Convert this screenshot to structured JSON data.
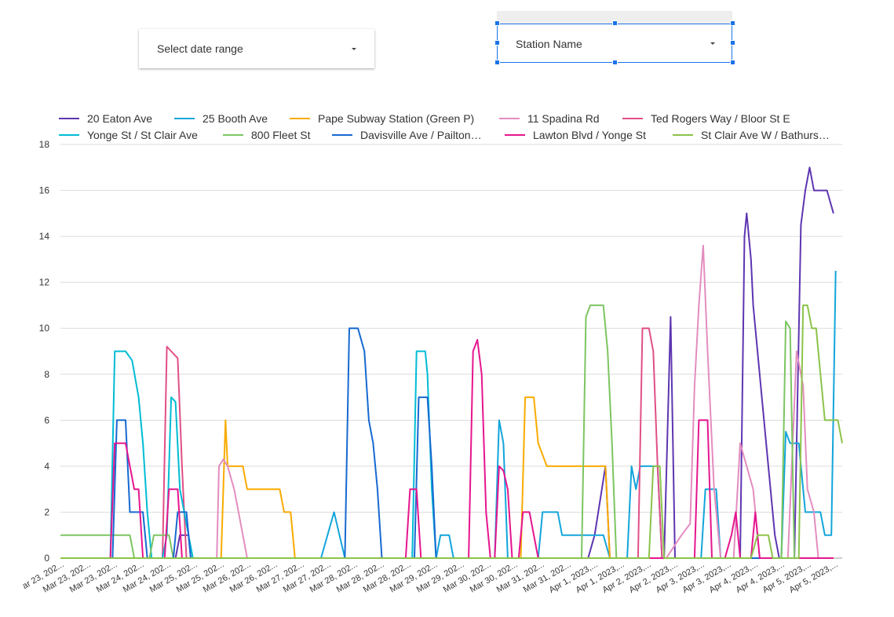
{
  "controls": {
    "date_range_label": "Select date range",
    "station_label": "Station Name"
  },
  "chart_data": {
    "type": "line",
    "ylim": [
      0,
      18
    ],
    "yticks": [
      "0",
      "2",
      "4",
      "6",
      "8",
      "10",
      "12",
      "14",
      "16",
      "18"
    ],
    "grid": true,
    "legend_position": "top",
    "x_tick_labels": [
      "ar 23, 202...",
      "Mar 23, 202...",
      "Mar 23, 202...",
      "Mar 24, 202...",
      "Mar 24, 202...",
      "Mar 25, 202...",
      "Mar 25, 202...",
      "Mar 26, 202...",
      "Mar 26, 202...",
      "Mar 27, 202...",
      "Mar 27, 202...",
      "Mar 28, 202...",
      "Mar 28, 202...",
      "Mar 28, 202...",
      "Mar 29, 202...",
      "Mar 29, 202...",
      "Mar 30, 202...",
      "Mar 30, 202...",
      "Mar 31, 202...",
      "Mar 31, 202...",
      "Apr 1, 2023,...",
      "Apr 1, 2023,...",
      "Apr 2, 2023,...",
      "Apr 2, 2023,...",
      "Apr 3, 2023,...",
      "Apr 3, 2023,...",
      "Apr 4, 2023,...",
      "Apr 4, 2023,...",
      "Apr 5, 2023,...",
      "Apr 5, 2023,..."
    ],
    "x_points": 31,
    "series": [
      {
        "name": "20 Eaton Ave",
        "color": "#5e35b1",
        "points": [
          [
            0,
            0
          ],
          [
            5.3,
            0
          ],
          [
            5.5,
            1
          ],
          [
            5.9,
            1
          ],
          [
            6.0,
            0
          ],
          [
            24.3,
            0
          ],
          [
            24.6,
            1
          ],
          [
            25.1,
            4
          ],
          [
            25.3,
            0
          ],
          [
            27.8,
            0
          ],
          [
            28.1,
            10.5
          ],
          [
            28.3,
            0
          ],
          [
            31.3,
            0
          ],
          [
            31.5,
            14
          ],
          [
            31.6,
            15
          ],
          [
            31.8,
            13
          ],
          [
            31.9,
            11
          ],
          [
            32.3,
            7
          ],
          [
            32.6,
            4
          ],
          [
            32.9,
            1
          ],
          [
            33.1,
            0
          ],
          [
            33.8,
            0
          ],
          [
            34.1,
            14.5
          ],
          [
            34.3,
            16
          ],
          [
            34.5,
            17
          ],
          [
            34.7,
            16
          ],
          [
            35.3,
            16
          ],
          [
            35.6,
            15
          ]
        ]
      },
      {
        "name": "25 Booth Ave",
        "color": "#12a5db",
        "points": [
          [
            0,
            0
          ],
          [
            12.0,
            0
          ],
          [
            12.3,
            1
          ],
          [
            12.6,
            2
          ],
          [
            13.1,
            0
          ],
          [
            17.3,
            0
          ],
          [
            17.5,
            1
          ],
          [
            17.9,
            1
          ],
          [
            18.1,
            0
          ],
          [
            20.0,
            0
          ],
          [
            20.2,
            6
          ],
          [
            20.4,
            5
          ],
          [
            20.6,
            0
          ],
          [
            22.0,
            0
          ],
          [
            22.2,
            2
          ],
          [
            22.9,
            2
          ],
          [
            23.1,
            1
          ],
          [
            25.0,
            1
          ],
          [
            25.3,
            0
          ],
          [
            26.1,
            0
          ],
          [
            26.3,
            4
          ],
          [
            26.5,
            3
          ],
          [
            26.7,
            4
          ],
          [
            27.5,
            4
          ],
          [
            27.7,
            0
          ],
          [
            29.5,
            0
          ],
          [
            29.7,
            3
          ],
          [
            30.2,
            3
          ],
          [
            30.4,
            0
          ],
          [
            33.2,
            0
          ],
          [
            33.4,
            5.5
          ],
          [
            33.6,
            5
          ],
          [
            34.0,
            5
          ],
          [
            34.3,
            2
          ],
          [
            35.0,
            2
          ],
          [
            35.2,
            1
          ],
          [
            35.5,
            1
          ],
          [
            35.7,
            12.5
          ]
        ]
      },
      {
        "name": "Pape Subway Station (Green P)",
        "color": "#f9ab00",
        "points": [
          [
            0,
            0
          ],
          [
            7.4,
            0
          ],
          [
            7.6,
            6
          ],
          [
            7.7,
            4
          ],
          [
            8.4,
            4
          ],
          [
            8.6,
            3
          ],
          [
            10.1,
            3
          ],
          [
            10.3,
            2
          ],
          [
            10.6,
            2
          ],
          [
            10.8,
            0
          ],
          [
            21.2,
            0
          ],
          [
            21.4,
            7
          ],
          [
            21.8,
            7
          ],
          [
            22.0,
            5
          ],
          [
            22.4,
            4
          ],
          [
            25.1,
            4
          ],
          [
            25.3,
            0
          ],
          [
            35.6,
            0
          ]
        ]
      },
      {
        "name": "11 Spadina Rd",
        "color": "#e38dbf",
        "points": [
          [
            0,
            0
          ],
          [
            7.2,
            0
          ],
          [
            7.3,
            4
          ],
          [
            7.5,
            4.3
          ],
          [
            7.7,
            4
          ],
          [
            8.0,
            3
          ],
          [
            8.2,
            2
          ],
          [
            8.4,
            1
          ],
          [
            8.6,
            0
          ],
          [
            27.9,
            0
          ],
          [
            28.6,
            1
          ],
          [
            29.0,
            1.5
          ],
          [
            29.2,
            7.5
          ],
          [
            29.4,
            11
          ],
          [
            29.6,
            13.6
          ],
          [
            29.8,
            9
          ],
          [
            30.1,
            3
          ],
          [
            30.4,
            0
          ],
          [
            31.0,
            0
          ],
          [
            31.3,
            5
          ],
          [
            31.6,
            4
          ],
          [
            31.9,
            3
          ],
          [
            32.2,
            0
          ],
          [
            33.5,
            0
          ],
          [
            33.9,
            9
          ],
          [
            34.2,
            7.5
          ],
          [
            34.4,
            3
          ],
          [
            34.7,
            2
          ],
          [
            34.9,
            0
          ],
          [
            35.6,
            0
          ]
        ]
      },
      {
        "name": "Ted Rogers Way / Bloor St E",
        "color": "#e04f86",
        "points": [
          [
            0,
            0
          ],
          [
            4.7,
            0
          ],
          [
            4.9,
            9.2
          ],
          [
            5.1,
            9
          ],
          [
            5.4,
            8.7
          ],
          [
            5.6,
            4
          ],
          [
            5.8,
            0
          ],
          [
            26.6,
            0
          ],
          [
            26.8,
            10
          ],
          [
            27.1,
            10
          ],
          [
            27.3,
            9
          ],
          [
            27.5,
            4
          ],
          [
            27.7,
            0
          ],
          [
            35.6,
            0
          ]
        ]
      },
      {
        "name": "Yonge St / St Clair Ave",
        "color": "#00bcd4",
        "points": [
          [
            0,
            0
          ],
          [
            2.3,
            0
          ],
          [
            2.5,
            9
          ],
          [
            3.0,
            9
          ],
          [
            3.3,
            8.6
          ],
          [
            3.6,
            7
          ],
          [
            3.8,
            5
          ],
          [
            4.0,
            2
          ],
          [
            4.2,
            0
          ],
          [
            4.7,
            0
          ],
          [
            4.9,
            1
          ],
          [
            5.1,
            7
          ],
          [
            5.3,
            6.8
          ],
          [
            5.5,
            3
          ],
          [
            5.7,
            2
          ],
          [
            5.9,
            1
          ],
          [
            6.1,
            0
          ],
          [
            16.2,
            0
          ],
          [
            16.4,
            9
          ],
          [
            16.8,
            9
          ],
          [
            16.9,
            8
          ],
          [
            17.1,
            3
          ],
          [
            17.3,
            0
          ],
          [
            22.6,
            0
          ],
          [
            35.6,
            0
          ]
        ]
      },
      {
        "name": "800 Fleet St",
        "color": "#7cc561",
        "points": [
          [
            0,
            1
          ],
          [
            3.2,
            1
          ],
          [
            3.4,
            0
          ],
          [
            4.1,
            0
          ],
          [
            4.3,
            1
          ],
          [
            5.0,
            1
          ],
          [
            5.2,
            0
          ],
          [
            24.0,
            0
          ],
          [
            24.2,
            10.5
          ],
          [
            24.4,
            11
          ],
          [
            25.0,
            11
          ],
          [
            25.2,
            9
          ],
          [
            25.4,
            5
          ],
          [
            25.6,
            0
          ],
          [
            33.2,
            0
          ],
          [
            33.4,
            10.3
          ],
          [
            33.6,
            10
          ],
          [
            33.8,
            0
          ],
          [
            35.6,
            0
          ]
        ]
      },
      {
        "name": "Davisville Ave / Pailton…",
        "color": "#1769d1",
        "points": [
          [
            0,
            0
          ],
          [
            2.4,
            0
          ],
          [
            2.6,
            6
          ],
          [
            3.0,
            6
          ],
          [
            3.2,
            2
          ],
          [
            3.8,
            2
          ],
          [
            4.0,
            0
          ],
          [
            5.2,
            0
          ],
          [
            5.4,
            2
          ],
          [
            5.8,
            2
          ],
          [
            6.0,
            0
          ],
          [
            13.1,
            0
          ],
          [
            13.3,
            10
          ],
          [
            13.7,
            10
          ],
          [
            14.0,
            9
          ],
          [
            14.2,
            6
          ],
          [
            14.4,
            5
          ],
          [
            14.6,
            3
          ],
          [
            14.8,
            0
          ],
          [
            16.3,
            0
          ],
          [
            16.5,
            7
          ],
          [
            16.9,
            7
          ],
          [
            17.1,
            4
          ],
          [
            17.3,
            0
          ],
          [
            29.9,
            0
          ],
          [
            35.6,
            0
          ]
        ]
      },
      {
        "name": "Lawton Blvd / Yonge St",
        "color": "#e6158e",
        "points": [
          [
            0,
            0
          ],
          [
            2.3,
            0
          ],
          [
            2.5,
            5
          ],
          [
            3.0,
            5
          ],
          [
            3.2,
            4
          ],
          [
            3.4,
            3
          ],
          [
            3.6,
            3
          ],
          [
            3.8,
            0
          ],
          [
            4.8,
            0
          ],
          [
            5.0,
            3
          ],
          [
            5.4,
            3
          ],
          [
            5.6,
            0
          ],
          [
            15.9,
            0
          ],
          [
            16.1,
            3
          ],
          [
            16.4,
            3
          ],
          [
            16.6,
            0
          ],
          [
            18.8,
            0
          ],
          [
            19.0,
            9
          ],
          [
            19.2,
            9.5
          ],
          [
            19.4,
            8
          ],
          [
            19.6,
            2
          ],
          [
            19.8,
            0
          ],
          [
            20.0,
            0
          ],
          [
            20.2,
            4
          ],
          [
            20.4,
            3.8
          ],
          [
            20.6,
            3
          ],
          [
            20.8,
            0
          ],
          [
            21.1,
            0
          ],
          [
            21.3,
            2
          ],
          [
            21.6,
            2
          ],
          [
            21.8,
            1
          ],
          [
            22.0,
            0
          ],
          [
            29.2,
            0
          ],
          [
            29.4,
            6
          ],
          [
            29.8,
            6
          ],
          [
            30.0,
            0
          ],
          [
            30.6,
            0
          ],
          [
            30.9,
            1
          ],
          [
            31.1,
            2
          ],
          [
            31.3,
            0
          ],
          [
            31.8,
            0
          ],
          [
            32.0,
            2
          ],
          [
            32.2,
            0
          ],
          [
            35.6,
            0
          ]
        ]
      },
      {
        "name": "St Clair Ave W / Bathurs…",
        "color": "#8bc34a",
        "points": [
          [
            0,
            0
          ],
          [
            27.1,
            0
          ],
          [
            27.3,
            4
          ],
          [
            27.6,
            4
          ],
          [
            27.8,
            0
          ],
          [
            31.8,
            0
          ],
          [
            32.1,
            1
          ],
          [
            32.6,
            1
          ],
          [
            32.8,
            0
          ],
          [
            34.0,
            0
          ],
          [
            34.2,
            11
          ],
          [
            34.4,
            11
          ],
          [
            34.6,
            10
          ],
          [
            34.8,
            10
          ],
          [
            35.0,
            8
          ],
          [
            35.2,
            6
          ],
          [
            35.8,
            6
          ],
          [
            36.0,
            5
          ]
        ]
      }
    ]
  }
}
